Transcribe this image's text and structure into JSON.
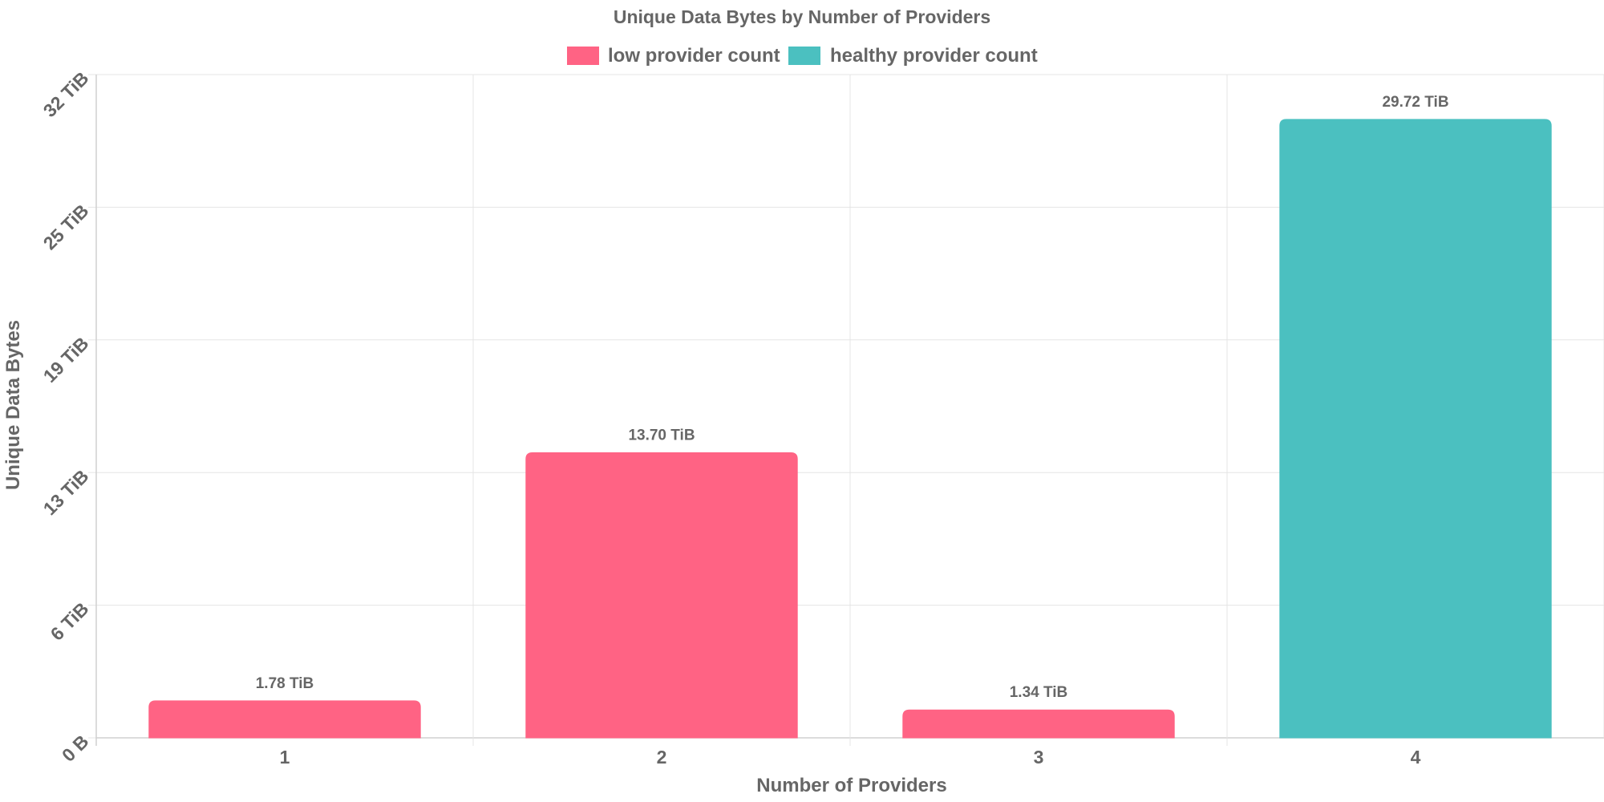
{
  "chart_data": {
    "type": "bar",
    "title": "Unique Data Bytes by Number of Providers",
    "xlabel": "Number of Providers",
    "ylabel": "Unique Data Bytes",
    "categories": [
      "1",
      "2",
      "3",
      "4"
    ],
    "values": [
      1.78,
      13.7,
      1.34,
      29.72
    ],
    "value_labels": [
      "1.78 TiB",
      "13.70 TiB",
      "1.34 TiB",
      "29.72 TiB"
    ],
    "bar_series": [
      "low provider count",
      "low provider count",
      "low provider count",
      "healthy provider count"
    ],
    "unit": "TiB",
    "ylim": [
      0,
      31.875
    ],
    "yticks": [
      {
        "value": 0,
        "label": "0 B"
      },
      {
        "value": 6.375,
        "label": "6 TiB"
      },
      {
        "value": 12.75,
        "label": "13 TiB"
      },
      {
        "value": 19.125,
        "label": "19 TiB"
      },
      {
        "value": 25.5,
        "label": "25 TiB"
      },
      {
        "value": 31.875,
        "label": "32 TiB"
      }
    ],
    "legend": {
      "placement": "top-center",
      "items": [
        {
          "name": "low provider count",
          "color": "#ff6384"
        },
        {
          "name": "healthy provider count",
          "color": "#4bc0c0"
        }
      ]
    },
    "grid": true
  }
}
